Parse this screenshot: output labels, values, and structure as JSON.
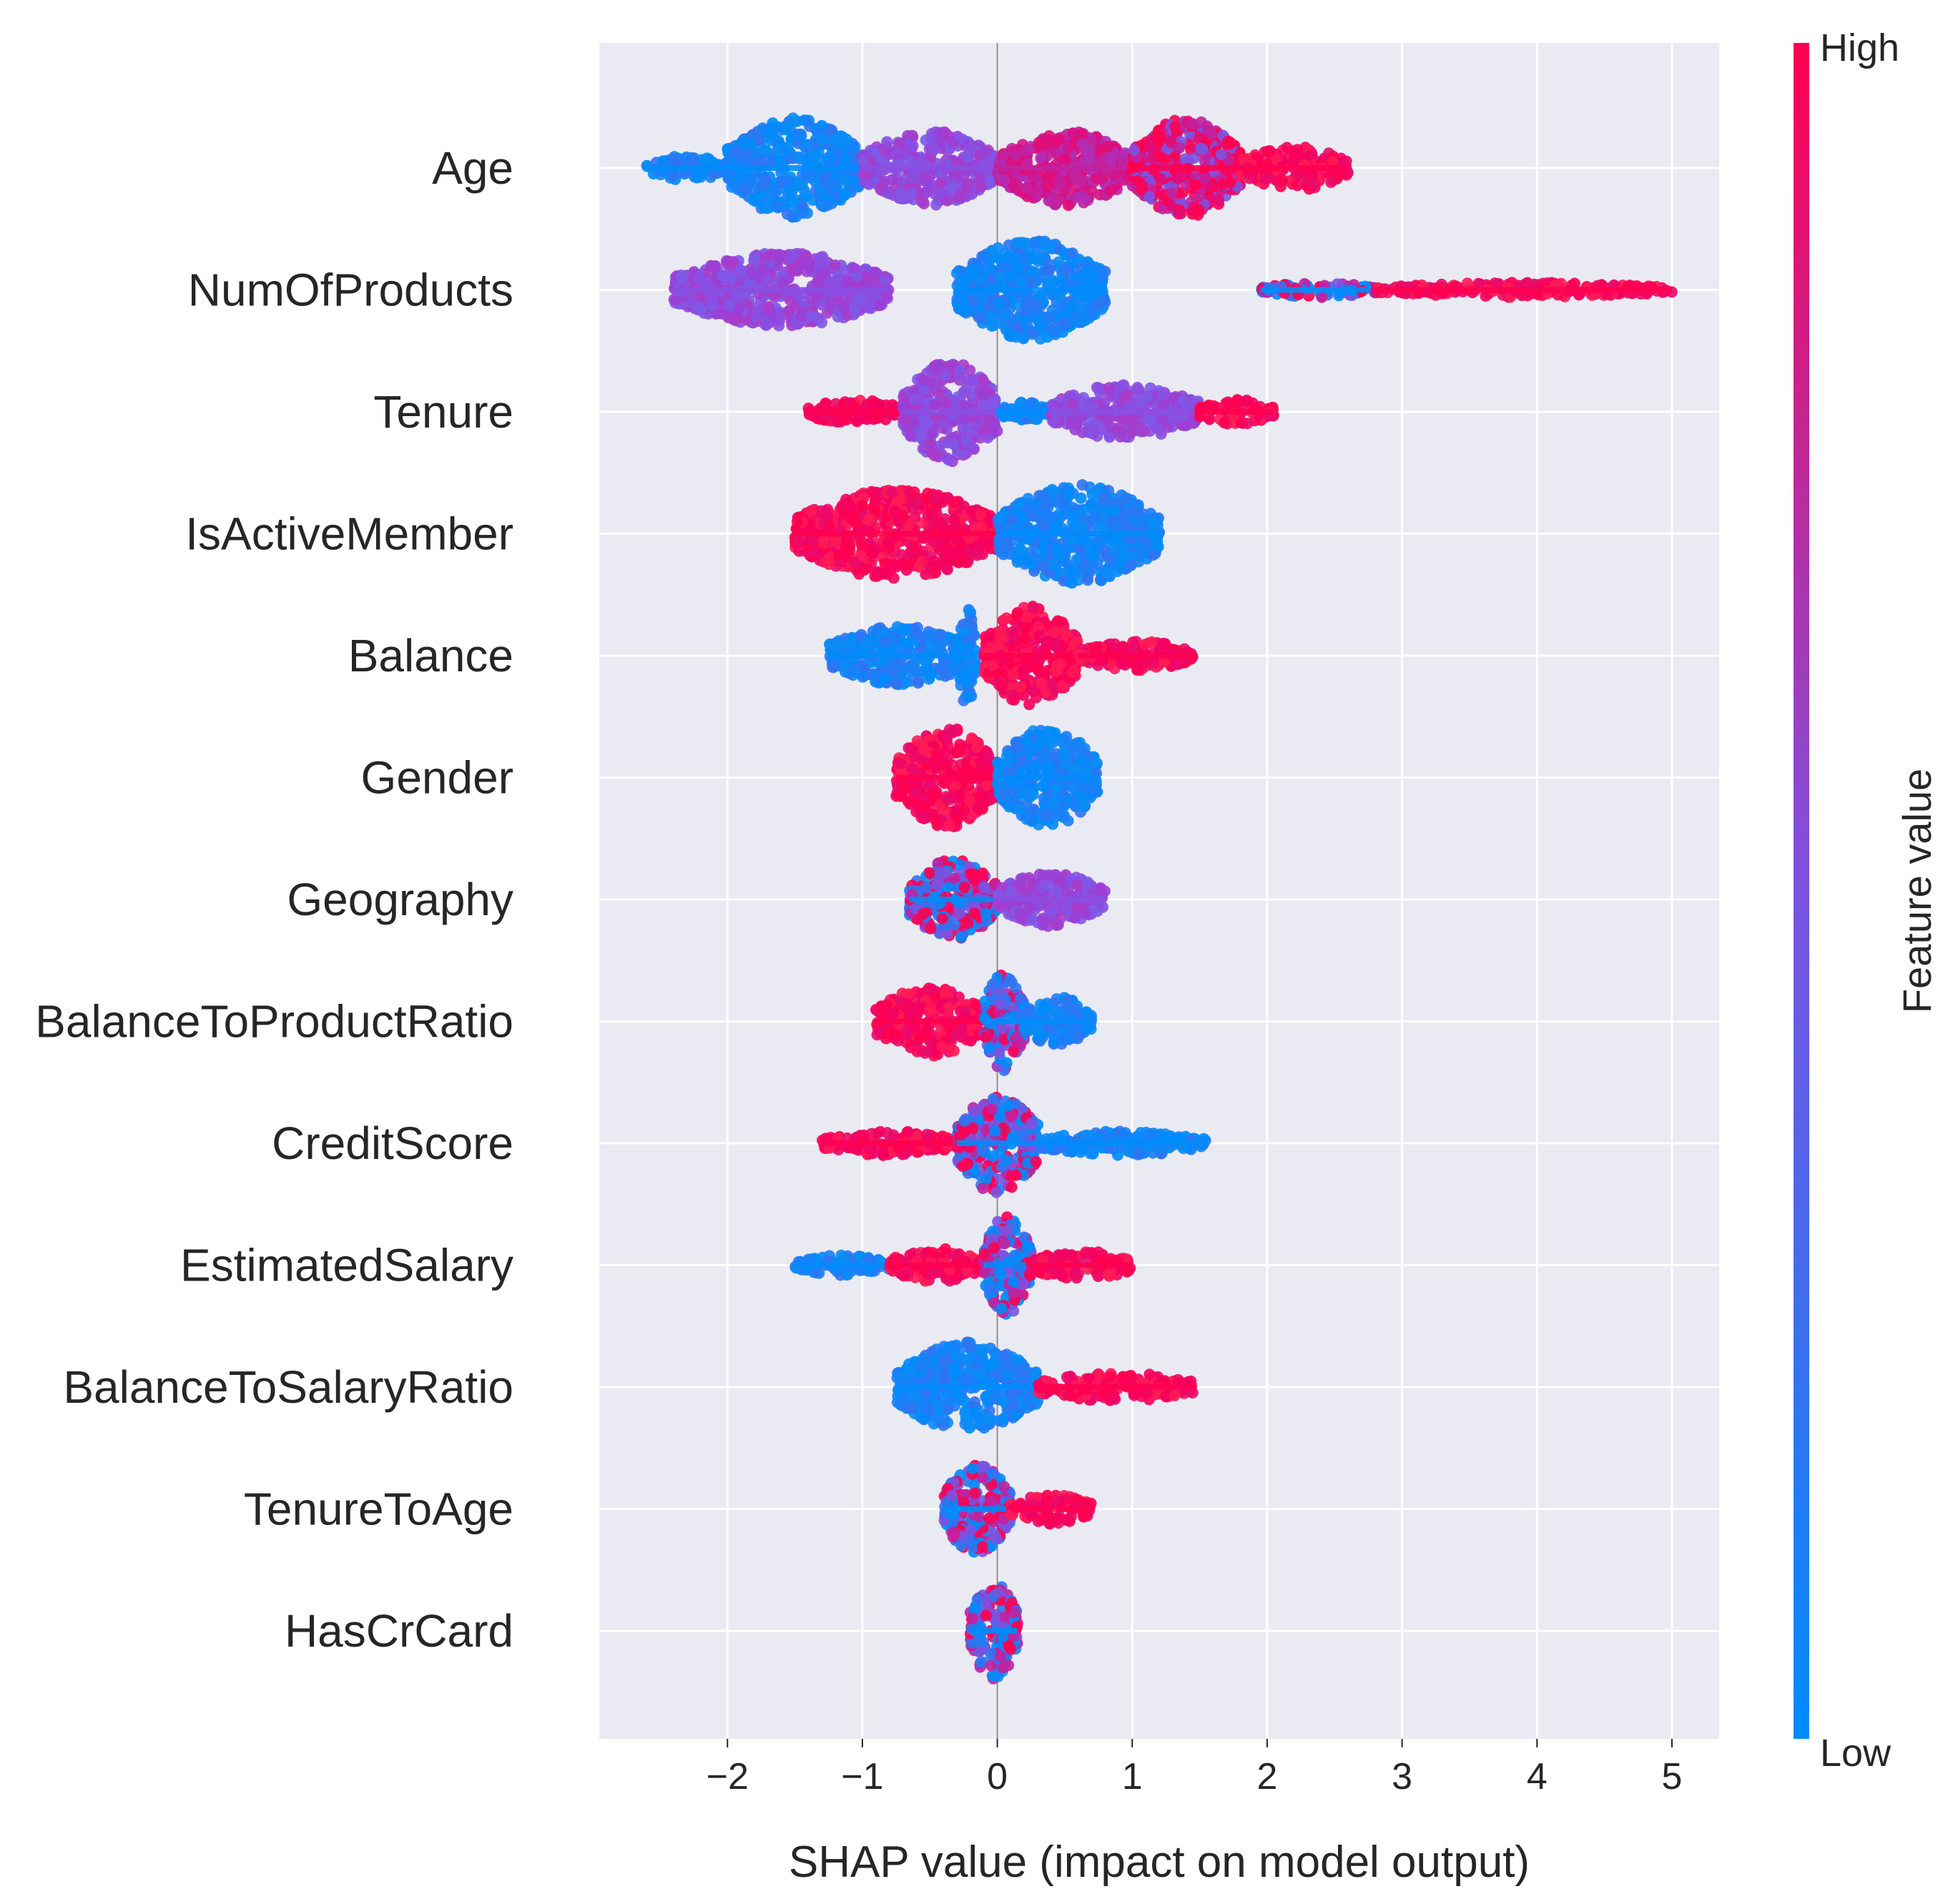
{
  "chart_data": {
    "type": "scatter",
    "subtype": "shap_beeswarm",
    "xlabel": "SHAP value (impact on model output)",
    "xlim": [
      -2.95,
      5.35
    ],
    "xticks": [
      -2,
      -1,
      0,
      1,
      2,
      3,
      4,
      5
    ],
    "xtick_labels": [
      "−2",
      "−1",
      "0",
      "1",
      "2",
      "3",
      "4",
      "5"
    ],
    "grid": true,
    "colorbar": {
      "title": "Feature value",
      "high_label": "High",
      "low_label": "Low",
      "low_color": "#008bfb",
      "mid_color": "#7c52e0",
      "high_color": "#ff0051"
    },
    "background_color": "#eaeaf2",
    "features": [
      {
        "name": "Age",
        "range": [
          -2.6,
          2.6
        ],
        "segments": [
          {
            "from": -2.6,
            "to": -2.0,
            "color": "blue",
            "width": 0.25
          },
          {
            "from": -2.0,
            "to": -1.0,
            "color": "blue",
            "width": 1.0
          },
          {
            "from": -1.0,
            "to": 0.0,
            "color": "purple",
            "width": 0.75
          },
          {
            "from": 0.0,
            "to": 1.0,
            "color": "magenta",
            "width": 0.75
          },
          {
            "from": 1.0,
            "to": 1.8,
            "color": "red-mix",
            "width": 1.0
          },
          {
            "from": 1.8,
            "to": 2.6,
            "color": "red",
            "width": 0.45
          }
        ]
      },
      {
        "name": "NumOfProducts",
        "range": [
          -2.4,
          5.0
        ],
        "segments": [
          {
            "from": -2.4,
            "to": -0.8,
            "color": "purple",
            "width": 0.75
          },
          {
            "from": -0.3,
            "to": 0.8,
            "color": "blue",
            "width": 1.0
          },
          {
            "from": 1.95,
            "to": 2.8,
            "color": "mix",
            "width": 0.15
          },
          {
            "from": 2.8,
            "to": 5.0,
            "color": "red",
            "width": 0.15
          }
        ]
      },
      {
        "name": "Tenure",
        "range": [
          -1.4,
          2.05
        ],
        "segments": [
          {
            "from": -1.4,
            "to": -0.7,
            "color": "red",
            "width": 0.25
          },
          {
            "from": -0.7,
            "to": 0.0,
            "color": "purple",
            "width": 1.0
          },
          {
            "from": 0.0,
            "to": 0.4,
            "color": "blue",
            "width": 0.2
          },
          {
            "from": 0.4,
            "to": 1.5,
            "color": "purple",
            "width": 0.55
          },
          {
            "from": 1.5,
            "to": 2.05,
            "color": "red",
            "width": 0.25
          }
        ]
      },
      {
        "name": "IsActiveMember",
        "range": [
          -1.5,
          1.2
        ],
        "segments": [
          {
            "from": -1.5,
            "to": 0.0,
            "color": "red",
            "width": 0.9
          },
          {
            "from": 0.0,
            "to": 1.2,
            "color": "blue",
            "width": 1.0
          }
        ]
      },
      {
        "name": "Balance",
        "range": [
          -1.25,
          1.45
        ],
        "segments": [
          {
            "from": -1.25,
            "to": -0.2,
            "color": "blue",
            "width": 0.6
          },
          {
            "from": -0.3,
            "to": -0.15,
            "color": "blue",
            "width": 1.0
          },
          {
            "from": -0.1,
            "to": 0.6,
            "color": "red",
            "width": 1.0
          },
          {
            "from": 0.6,
            "to": 1.45,
            "color": "red",
            "width": 0.3
          }
        ]
      },
      {
        "name": "Gender",
        "range": [
          -0.75,
          0.75
        ],
        "segments": [
          {
            "from": -0.75,
            "to": 0.0,
            "color": "red",
            "width": 1.0
          },
          {
            "from": 0.0,
            "to": 0.75,
            "color": "blue",
            "width": 1.0
          }
        ]
      },
      {
        "name": "Geography",
        "range": [
          -0.65,
          0.8
        ],
        "segments": [
          {
            "from": -0.65,
            "to": 0.0,
            "color": "mix",
            "width": 0.8
          },
          {
            "from": 0.0,
            "to": 0.8,
            "color": "purple",
            "width": 0.55
          }
        ]
      },
      {
        "name": "BalanceToProductRatio",
        "range": [
          -0.9,
          0.7
        ],
        "segments": [
          {
            "from": -0.9,
            "to": -0.1,
            "color": "red",
            "width": 0.7
          },
          {
            "from": -0.1,
            "to": 0.2,
            "color": "mix",
            "width": 1.0
          },
          {
            "from": 0.2,
            "to": 0.7,
            "color": "blue",
            "width": 0.5
          }
        ]
      },
      {
        "name": "CreditScore",
        "range": [
          -1.3,
          1.55
        ],
        "segments": [
          {
            "from": -1.3,
            "to": -0.3,
            "color": "red",
            "width": 0.25
          },
          {
            "from": -0.3,
            "to": 0.3,
            "color": "mix",
            "width": 1.0
          },
          {
            "from": 0.3,
            "to": 1.55,
            "color": "blue",
            "width": 0.25
          }
        ]
      },
      {
        "name": "EstimatedSalary",
        "range": [
          -1.5,
          1.0
        ],
        "segments": [
          {
            "from": -1.5,
            "to": -0.8,
            "color": "blue",
            "width": 0.2
          },
          {
            "from": -0.8,
            "to": -0.1,
            "color": "red",
            "width": 0.35
          },
          {
            "from": -0.1,
            "to": 0.25,
            "color": "mix",
            "width": 1.0
          },
          {
            "from": 0.25,
            "to": 1.0,
            "color": "red",
            "width": 0.3
          }
        ]
      },
      {
        "name": "BalanceToSalaryRatio",
        "range": [
          -0.75,
          1.45
        ],
        "segments": [
          {
            "from": -0.75,
            "to": 0.3,
            "color": "blue",
            "width": 0.9
          },
          {
            "from": 0.3,
            "to": 1.45,
            "color": "red",
            "width": 0.3
          }
        ]
      },
      {
        "name": "TenureToAge",
        "range": [
          -0.4,
          0.7
        ],
        "segments": [
          {
            "from": -0.4,
            "to": 0.1,
            "color": "mix",
            "width": 0.9
          },
          {
            "from": 0.1,
            "to": 0.7,
            "color": "red",
            "width": 0.3
          }
        ]
      },
      {
        "name": "HasCrCard",
        "range": [
          -0.2,
          0.15
        ],
        "segments": [
          {
            "from": -0.2,
            "to": 0.15,
            "color": "mix",
            "width": 1.0
          }
        ]
      }
    ]
  }
}
